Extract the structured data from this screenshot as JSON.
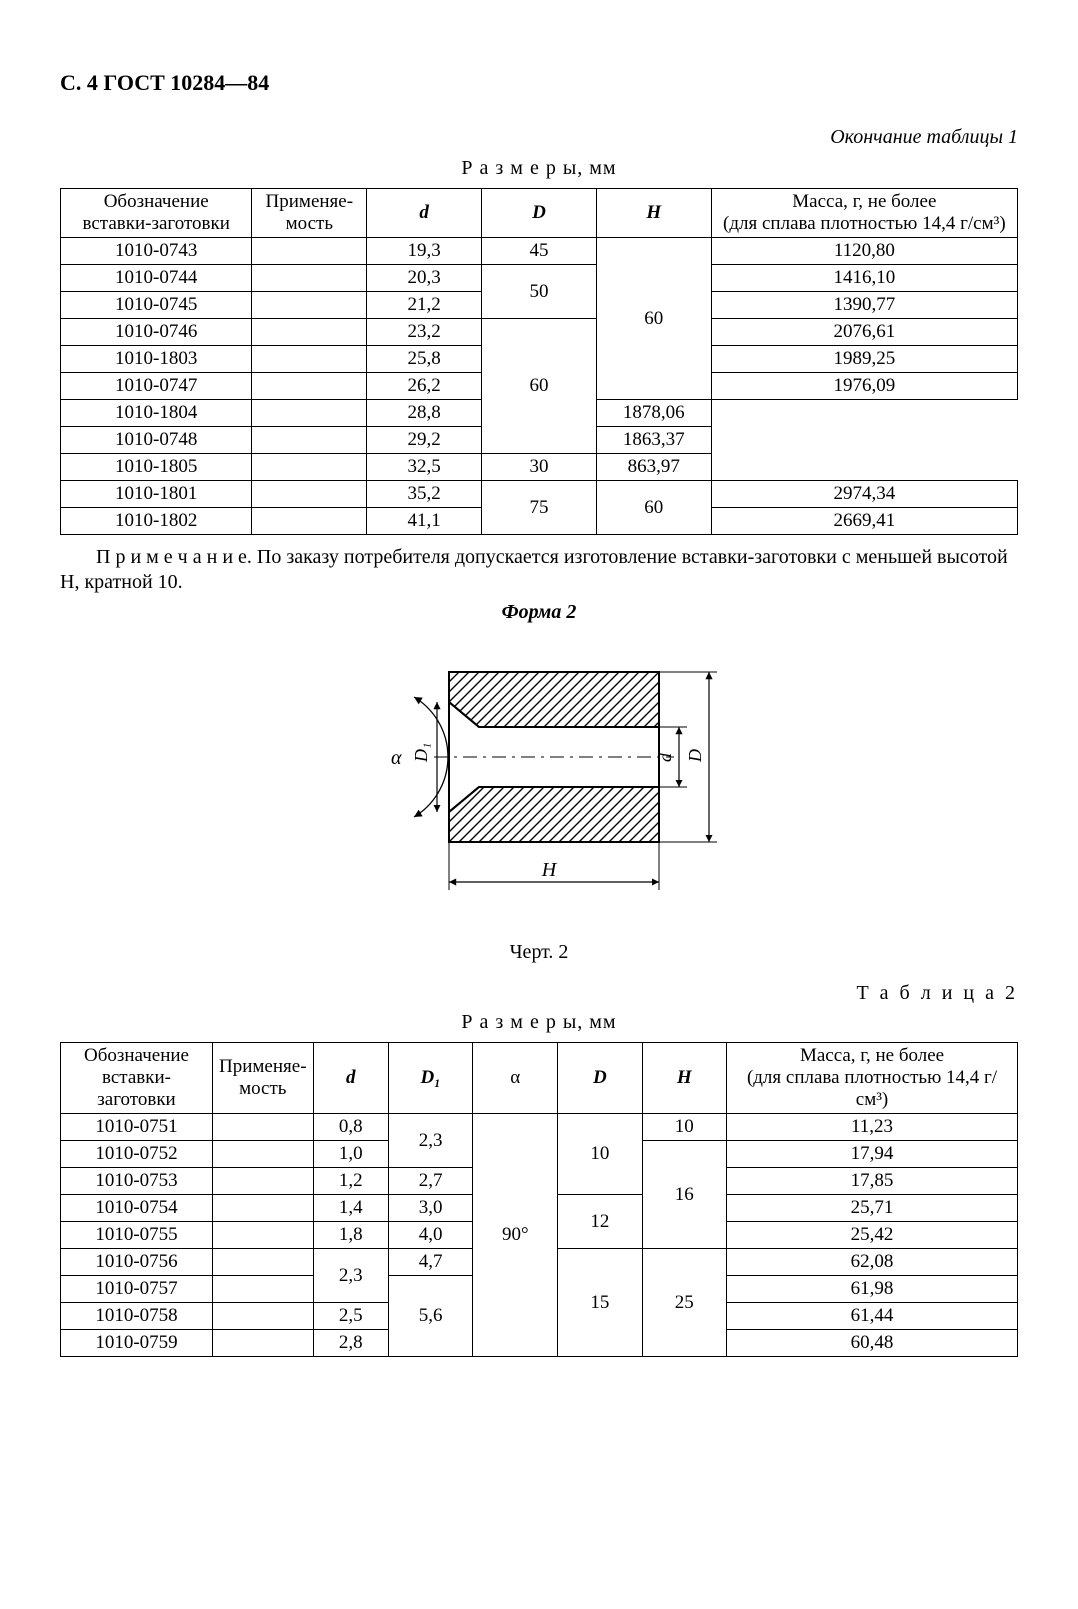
{
  "page_header": "С. 4 ГОСТ 10284—84",
  "table1": {
    "continuation_caption": "Окончание таблицы 1",
    "dimensions_caption": "Р а з м е р ы, мм",
    "columns": {
      "c1": "Обозначение вставки-заготовки",
      "c2": "Применяе-мость",
      "c3": "d",
      "c4": "D",
      "c5": "H",
      "c6_l1": "Масса, г, не более",
      "c6_l2": "(для сплава плотностью 14,4 г/см³)"
    },
    "rows": [
      {
        "code": "1010-0743",
        "d": "19,3",
        "D": "45",
        "H": "60",
        "mass": "1120,80",
        "D_span": 1,
        "H_span": 6
      },
      {
        "code": "1010-0744",
        "d": "20,3",
        "D": "50",
        "H": "",
        "mass": "1416,10",
        "D_span": 2,
        "H_span": 0
      },
      {
        "code": "1010-0745",
        "d": "21,2",
        "D": "",
        "H": "",
        "mass": "1390,77",
        "D_span": 0,
        "H_span": 0
      },
      {
        "code": "1010-0746",
        "d": "23,2",
        "D": "60",
        "H": "",
        "mass": "2076,61",
        "D_span": 5,
        "H_span": 0
      },
      {
        "code": "1010-1803",
        "d": "25,8",
        "D": "",
        "H": "",
        "mass": "1989,25",
        "D_span": 0,
        "H_span": 0
      },
      {
        "code": "1010-0747",
        "d": "26,2",
        "D": "",
        "H": "",
        "mass": "1976,09",
        "D_span": 0,
        "H_span": 0
      },
      {
        "code": "1010-1804",
        "d": "28,8",
        "D": "",
        "H": "",
        "mass": "1878,06",
        "D_span": 0,
        "H_span": 0
      },
      {
        "code": "1010-0748",
        "d": "29,2",
        "D": "",
        "H": "",
        "mass": "1863,37",
        "D_span": 0,
        "H_span": 0
      },
      {
        "code": "1010-1805",
        "d": "32,5",
        "D": "",
        "H": "30",
        "mass": "863,97",
        "D_span": 0,
        "H_span": 1
      },
      {
        "code": "1010-1801",
        "d": "35,2",
        "D": "75",
        "H": "60",
        "mass": "2974,34",
        "D_span": 2,
        "H_span": 2
      },
      {
        "code": "1010-1802",
        "d": "41,1",
        "D": "",
        "H": "",
        "mass": "2669,41",
        "D_span": 0,
        "H_span": 0
      }
    ]
  },
  "note_text": "П р и м е ч а н и е. По заказу потребителя допускается изготовление вставки-заготовки с меньшей высотой H, кратной 10.",
  "form2_caption": "Форма 2",
  "figure": {
    "caption": "Черт. 2",
    "labels": {
      "alpha": "α",
      "D1": "D₁",
      "d": "d",
      "D": "D",
      "H": "H"
    },
    "hatch_color": "#000000",
    "line_color": "#000000",
    "bg": "#ffffff"
  },
  "table2": {
    "title_caption": "Т а б л и ц а  2",
    "dimensions_caption": "Р а з м е р ы, мм",
    "columns": {
      "c1": "Обозначение вставки-заготовки",
      "c2": "Применяе-мость",
      "c3": "d",
      "c4": "D₁",
      "c5": "α",
      "c6": "D",
      "c7": "H",
      "c8_l1": "Масса, г, не более",
      "c8_l2": "(для сплава плотностью 14,4 г/см³)"
    },
    "rows": [
      {
        "code": "1010-0751",
        "d": "0,8",
        "d_span": 1,
        "D1": "2,3",
        "D1_span": 2,
        "alpha": "90°",
        "alpha_span": 9,
        "D": "10",
        "D_span": 3,
        "H": "10",
        "H_span": 1,
        "mass": "11,23"
      },
      {
        "code": "1010-0752",
        "d": "1,0",
        "d_span": 1,
        "D1": "",
        "D1_span": 0,
        "alpha": "",
        "alpha_span": 0,
        "D": "",
        "D_span": 0,
        "H": "16",
        "H_span": 4,
        "mass": "17,94"
      },
      {
        "code": "1010-0753",
        "d": "1,2",
        "d_span": 1,
        "D1": "2,7",
        "D1_span": 1,
        "alpha": "",
        "alpha_span": 0,
        "D": "",
        "D_span": 0,
        "H": "",
        "H_span": 0,
        "mass": "17,85"
      },
      {
        "code": "1010-0754",
        "d": "1,4",
        "d_span": 1,
        "D1": "3,0",
        "D1_span": 1,
        "alpha": "",
        "alpha_span": 0,
        "D": "12",
        "D_span": 2,
        "H": "",
        "H_span": 0,
        "mass": "25,71"
      },
      {
        "code": "1010-0755",
        "d": "1,8",
        "d_span": 1,
        "D1": "4,0",
        "D1_span": 1,
        "alpha": "",
        "alpha_span": 0,
        "D": "",
        "D_span": 0,
        "H": "",
        "H_span": 0,
        "mass": "25,42"
      },
      {
        "code": "1010-0756",
        "d": "2,3",
        "d_span": 2,
        "D1": "4,7",
        "D1_span": 1,
        "alpha": "",
        "alpha_span": 0,
        "D": "15",
        "D_span": 4,
        "H": "25",
        "H_span": 4,
        "mass": "62,08"
      },
      {
        "code": "1010-0757",
        "d": "",
        "d_span": 0,
        "D1": "5,6",
        "D1_span": 3,
        "alpha": "",
        "alpha_span": 0,
        "D": "",
        "D_span": 0,
        "H": "",
        "H_span": 0,
        "mass": "61,98"
      },
      {
        "code": "1010-0758",
        "d": "2,5",
        "d_span": 1,
        "D1": "",
        "D1_span": 0,
        "alpha": "",
        "alpha_span": 0,
        "D": "",
        "D_span": 0,
        "H": "",
        "H_span": 0,
        "mass": "61,44"
      },
      {
        "code": "1010-0759",
        "d": "2,8",
        "d_span": 1,
        "D1": "",
        "D1_span": 0,
        "alpha": "",
        "alpha_span": 0,
        "D": "",
        "D_span": 0,
        "H": "",
        "H_span": 0,
        "mass": "60,48"
      }
    ]
  }
}
